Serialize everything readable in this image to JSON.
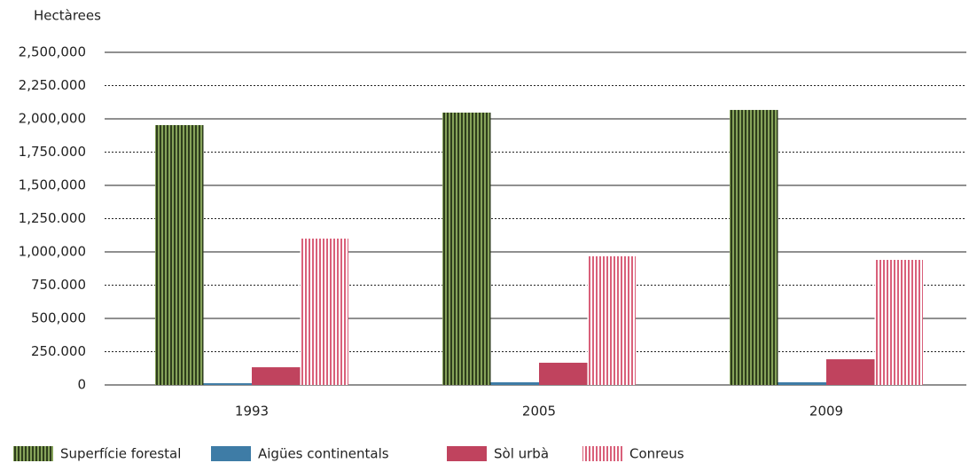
{
  "chart_data": {
    "type": "bar",
    "y_label": "Hectàrees",
    "categories": [
      "1993",
      "2005",
      "2009"
    ],
    "series": [
      {
        "name": "Superfície forestal",
        "color": "#86a35a",
        "hatch_color": "#2e3d1c",
        "values": [
          1953000,
          2047000,
          2067000
        ]
      },
      {
        "name": "Aigües continentals",
        "color": "#3e7ca6",
        "values": [
          13000,
          20000,
          20000
        ]
      },
      {
        "name": "Sòl urbà",
        "color": "#c0435e",
        "values": [
          133000,
          167000,
          193000
        ]
      },
      {
        "name": "Conreus",
        "color": "#ffffff",
        "hatch_color": "#d9607a",
        "values": [
          1100000,
          967000,
          940000
        ]
      }
    ],
    "ylim": [
      0,
      2500000
    ],
    "yticks": [
      0,
      {
        "value": 250000,
        "label": "250.000"
      },
      {
        "value": 500000,
        "label": "500,000"
      },
      {
        "value": 750000,
        "label": "750.000"
      },
      {
        "value": 1000000,
        "label": "1,000,000"
      },
      {
        "value": 1250000,
        "label": "1,250.000"
      },
      {
        "value": 1500000,
        "label": "1,500,000"
      },
      {
        "value": 1750000,
        "label": "1,750.000"
      },
      {
        "value": 2000000,
        "label": "2,000,000"
      },
      {
        "value": 2250000,
        "label": "2,250.000"
      },
      {
        "value": 2500000,
        "label": "2,500,000"
      }
    ],
    "grid": true,
    "legend": "bottom-left"
  }
}
